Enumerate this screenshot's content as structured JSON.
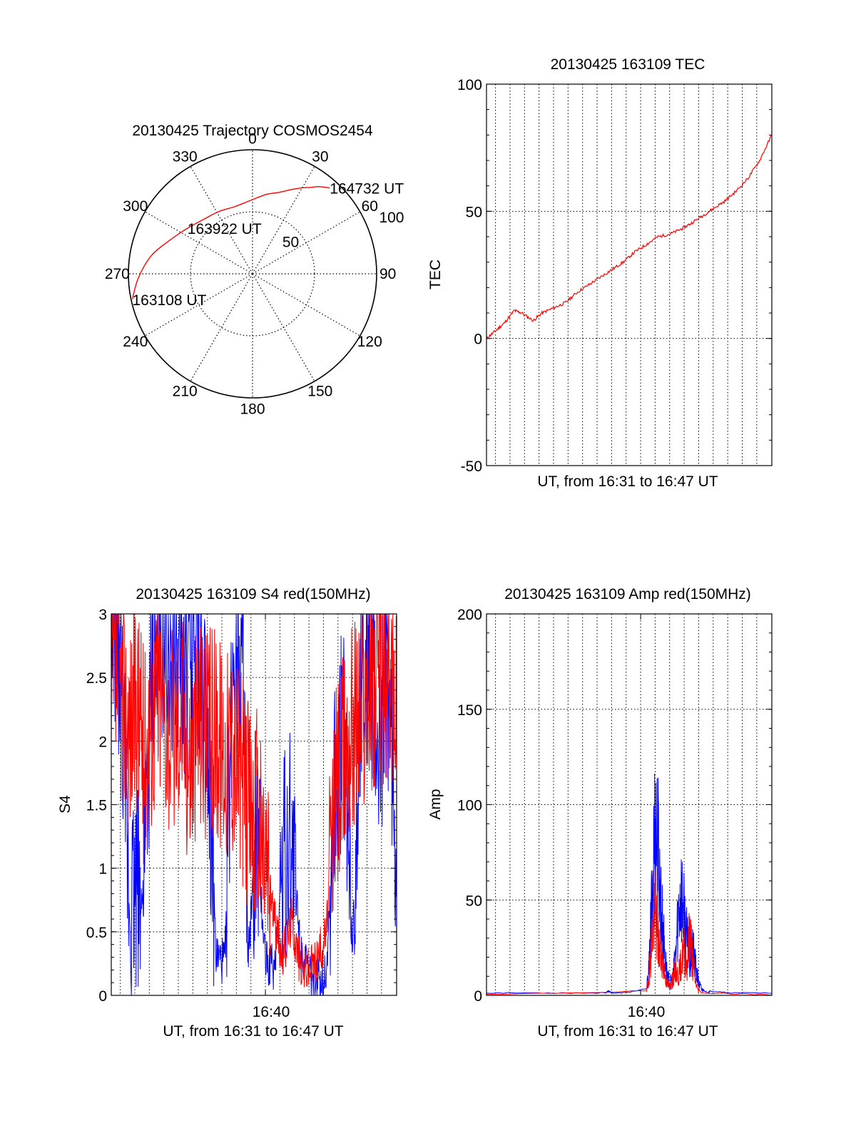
{
  "colors": {
    "red": "#ff0000",
    "blue": "#0000ff",
    "axis": "#000000",
    "grid": "#000000"
  },
  "chart_data": [
    {
      "id": "polar",
      "type": "polar-trajectory",
      "title": "20130425 Trajectory COSMOS2454",
      "angle_labels": [
        "0",
        "30",
        "60",
        "90",
        "120",
        "150",
        "180",
        "210",
        "240",
        "270",
        "300",
        "330"
      ],
      "radial_ticks": [
        50,
        100
      ],
      "radial_labels": [
        "50",
        "100"
      ],
      "r_max": 100,
      "trajectory": [
        {
          "az": 258,
          "r": 99
        },
        {
          "az": 268,
          "r": 92
        },
        {
          "az": 280,
          "r": 83
        },
        {
          "az": 292,
          "r": 72
        },
        {
          "az": 305,
          "r": 64
        },
        {
          "az": 318,
          "r": 59
        },
        {
          "az": 332,
          "r": 57
        },
        {
          "az": 345,
          "r": 56
        },
        {
          "az": 358,
          "r": 59
        },
        {
          "az": 10,
          "r": 65
        },
        {
          "az": 18,
          "r": 69
        },
        {
          "az": 25,
          "r": 75
        },
        {
          "az": 30,
          "r": 80
        },
        {
          "az": 34,
          "r": 84
        },
        {
          "az": 37,
          "r": 88
        },
        {
          "az": 40,
          "r": 91
        },
        {
          "az": 42,
          "r": 93
        }
      ],
      "point_labels": [
        {
          "text": "163108 UT",
          "az": 258,
          "r": 99
        },
        {
          "text": "163922 UT",
          "az": 305,
          "r": 64
        },
        {
          "text": "164732 UT",
          "az": 42,
          "r": 93
        }
      ]
    },
    {
      "id": "tec",
      "type": "line",
      "title": "20130425 163109 TEC",
      "xlabel": "UT, from 16:31 to 16:47 UT",
      "ylabel": "TEC",
      "ylim": [
        -50,
        100
      ],
      "yticks": [
        -50,
        0,
        50,
        100
      ],
      "yticklabels": [
        "-50",
        "0",
        "50",
        "100"
      ],
      "xlim": [
        "16:31:09",
        "16:47:32"
      ],
      "xgrid": [
        "16:31:40",
        "16:32:30",
        "16:33:20",
        "16:34:10",
        "16:35:00",
        "16:35:50",
        "16:36:40",
        "16:37:30",
        "16:38:20",
        "16:39:10",
        "16:40:00",
        "16:40:50",
        "16:41:40",
        "16:42:30",
        "16:43:20",
        "16:44:10",
        "16:45:00",
        "16:45:50",
        "16:46:40"
      ],
      "series": [
        {
          "color": "red",
          "x": [
            "16:31:09",
            "16:31:40",
            "16:32:10",
            "16:32:45",
            "16:33:10",
            "16:33:50",
            "16:34:20",
            "16:35:00",
            "16:35:40",
            "16:36:20",
            "16:37:00",
            "16:37:40",
            "16:38:20",
            "16:39:00",
            "16:39:40",
            "16:40:20",
            "16:41:00",
            "16:41:40",
            "16:42:20",
            "16:42:50",
            "16:43:30",
            "16:44:10",
            "16:44:50",
            "16:45:30",
            "16:46:10",
            "16:46:50",
            "16:47:32"
          ],
          "y": [
            0,
            3,
            6,
            11,
            10,
            7,
            10,
            12,
            14,
            18,
            21,
            24,
            27,
            30,
            34,
            37,
            40,
            41,
            43,
            45,
            48,
            51,
            54,
            58,
            63,
            70,
            80
          ]
        }
      ]
    },
    {
      "id": "s4",
      "type": "line",
      "title": "20130425 163109 S4 red(150MHz)",
      "xlabel": "UT, from 16:31 to 16:47 UT",
      "ylabel": "S4",
      "ylim": [
        0,
        3
      ],
      "yticks": [
        0,
        0.5,
        1,
        1.5,
        2,
        2.5,
        3
      ],
      "yticklabels": [
        "0",
        "0.5",
        "1",
        "1.5",
        "2",
        "2.5",
        "3"
      ],
      "xlim": [
        "16:31:09",
        "16:47:32"
      ],
      "xtick": "16:40:00",
      "xticklabel": "16:40",
      "xgrid": [
        "16:31:40",
        "16:32:30",
        "16:33:20",
        "16:34:10",
        "16:35:00",
        "16:35:50",
        "16:36:40",
        "16:37:30",
        "16:38:20",
        "16:39:10",
        "16:40:00",
        "16:40:50",
        "16:41:40",
        "16:42:30",
        "16:43:20",
        "16:44:10",
        "16:45:00",
        "16:45:50",
        "16:46:40"
      ],
      "series": [
        {
          "color": "blue",
          "x": [
            "16:31:09",
            "16:31:40",
            "16:32:10",
            "16:32:40",
            "16:33:00",
            "16:33:30",
            "16:34:00",
            "16:34:40",
            "16:35:10",
            "16:35:40",
            "16:36:10",
            "16:36:40",
            "16:37:10",
            "16:37:40",
            "16:38:10",
            "16:38:40",
            "16:39:00",
            "16:39:30",
            "16:40:00",
            "16:40:30",
            "16:41:00",
            "16:41:30",
            "16:42:00",
            "16:42:30",
            "16:43:00",
            "16:43:30",
            "16:44:00",
            "16:44:30",
            "16:45:00",
            "16:45:30",
            "16:46:00",
            "16:46:30",
            "16:47:00",
            "16:47:32"
          ],
          "y": [
            2.6,
            2.7,
            0.8,
            0.9,
            0.7,
            2.6,
            2.7,
            2.8,
            2.5,
            2.6,
            2.7,
            2.3,
            0.3,
            0.25,
            2.8,
            2.6,
            0.3,
            1.2,
            0.3,
            0.2,
            1.1,
            1.3,
            0.4,
            0.15,
            0.1,
            0.2,
            1.6,
            2.2,
            0.3,
            2.6,
            2.7,
            1.8,
            2.5,
            1.0
          ]
        },
        {
          "color": "red",
          "x": [
            "16:31:09",
            "16:31:40",
            "16:32:10",
            "16:32:40",
            "16:33:00",
            "16:33:30",
            "16:34:00",
            "16:34:40",
            "16:35:10",
            "16:35:40",
            "16:36:10",
            "16:36:40",
            "16:37:10",
            "16:37:40",
            "16:38:10",
            "16:38:40",
            "16:39:00",
            "16:39:30",
            "16:40:00",
            "16:40:30",
            "16:41:00",
            "16:41:30",
            "16:42:00",
            "16:42:30",
            "16:43:00",
            "16:43:30",
            "16:44:00",
            "16:44:30",
            "16:45:00",
            "16:45:30",
            "16:46:00",
            "16:46:30",
            "16:47:00",
            "16:47:32"
          ],
          "y": [
            2.5,
            2.4,
            2.1,
            2.3,
            1.9,
            2.2,
            2.4,
            2.0,
            2.3,
            1.8,
            2.2,
            2.0,
            2.1,
            1.9,
            2.0,
            1.7,
            1.5,
            1.4,
            1.1,
            0.6,
            0.3,
            0.6,
            0.25,
            0.2,
            0.3,
            0.5,
            1.6,
            1.9,
            2.2,
            2.3,
            2.4,
            2.5,
            2.4,
            2.6
          ]
        }
      ]
    },
    {
      "id": "amp",
      "type": "line",
      "title": "20130425 163109 Amp red(150MHz)",
      "xlabel": "UT, from 16:31 to 16:47 UT",
      "ylabel": "Amp",
      "ylim": [
        0,
        200
      ],
      "yticks": [
        0,
        50,
        100,
        150,
        200
      ],
      "yticklabels": [
        "0",
        "50",
        "100",
        "150",
        "200"
      ],
      "xlim": [
        "16:31:09",
        "16:47:32"
      ],
      "xtick": "16:40:00",
      "xticklabel": "16:40",
      "xgrid": [
        "16:31:40",
        "16:32:30",
        "16:33:20",
        "16:34:10",
        "16:35:00",
        "16:35:50",
        "16:36:40",
        "16:37:30",
        "16:38:20",
        "16:39:10",
        "16:40:00",
        "16:40:50",
        "16:41:40",
        "16:42:30",
        "16:43:20",
        "16:44:10",
        "16:45:00",
        "16:45:50",
        "16:46:40"
      ],
      "series": [
        {
          "color": "blue",
          "x": [
            "16:31:09",
            "16:35:00",
            "16:38:00",
            "16:38:10",
            "16:38:20",
            "16:39:00",
            "16:40:20",
            "16:40:30",
            "16:40:40",
            "16:40:50",
            "16:41:00",
            "16:41:10",
            "16:41:20",
            "16:41:30",
            "16:41:40",
            "16:41:50",
            "16:42:00",
            "16:42:10",
            "16:42:20",
            "16:42:30",
            "16:42:40",
            "16:42:50",
            "16:43:00",
            "16:43:10",
            "16:43:20",
            "16:43:30",
            "16:43:40",
            "16:43:50",
            "16:44:00",
            "16:45:00",
            "16:47:32"
          ],
          "y": [
            1,
            1,
            1,
            2,
            1,
            1,
            3,
            20,
            70,
            110,
            95,
            60,
            35,
            15,
            8,
            10,
            25,
            55,
            68,
            50,
            35,
            25,
            30,
            18,
            8,
            4,
            2,
            1,
            2,
            1,
            1
          ]
        },
        {
          "color": "red",
          "x": [
            "16:31:09",
            "16:40:20",
            "16:40:30",
            "16:40:40",
            "16:40:50",
            "16:41:00",
            "16:41:10",
            "16:41:20",
            "16:41:30",
            "16:41:40",
            "16:41:50",
            "16:42:00",
            "16:42:10",
            "16:42:20",
            "16:42:30",
            "16:42:40",
            "16:42:50",
            "16:43:00",
            "16:43:10",
            "16:43:20",
            "16:43:30",
            "16:47:32"
          ],
          "y": [
            0,
            2,
            15,
            40,
            55,
            35,
            25,
            18,
            8,
            6,
            10,
            18,
            12,
            22,
            30,
            20,
            45,
            20,
            8,
            3,
            1,
            0
          ]
        }
      ]
    }
  ]
}
